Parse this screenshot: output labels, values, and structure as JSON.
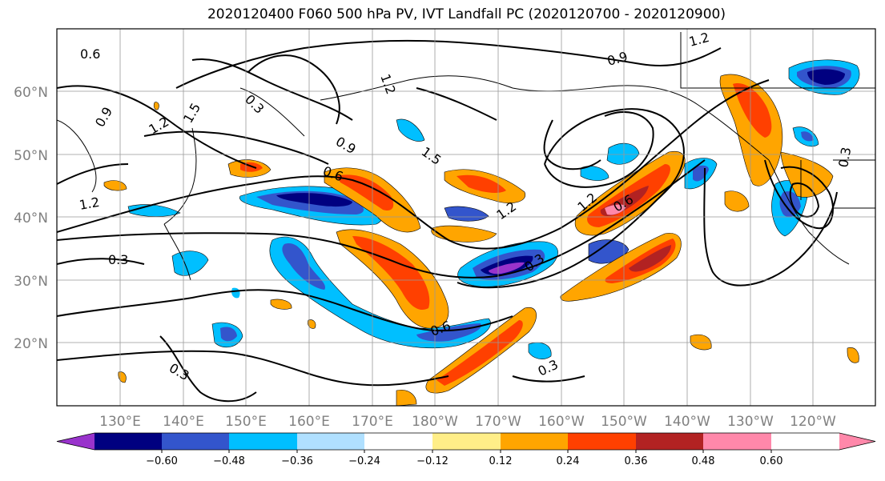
{
  "title": "2020120400 F060 500 hPa PV, IVT Landfall PC (2020120700 - 2020120900)",
  "map": {
    "lat_labels": [
      "60°N",
      "50°N",
      "40°N",
      "30°N",
      "20°N"
    ],
    "lon_labels": [
      "130°E",
      "140°E",
      "150°E",
      "160°E",
      "170°E",
      "180°W",
      "170°W",
      "160°W",
      "150°W",
      "140°W",
      "130°W",
      "120°W"
    ],
    "contour_labels": [
      "0.6",
      "0.9",
      "1.2",
      "1.5",
      "0.3",
      "1.2",
      "0.9",
      "0.6",
      "1.2",
      "1.5",
      "0.6",
      "0.3",
      "0.3",
      "0.3",
      "0.9",
      "0.3",
      "1.2",
      "0.6",
      "1.2",
      "1.2",
      "0.3"
    ]
  },
  "colorbar": {
    "colors": [
      "#9933cc",
      "#000080",
      "#3355cc",
      "#00bfff",
      "#b0e0ff",
      "#ffffff",
      "#ffee88",
      "#ffa500",
      "#ff4000",
      "#b22222",
      "#ff88aa"
    ],
    "ticks": [
      "−0.60",
      "−0.48",
      "−0.36",
      "−0.24",
      "−0.12",
      "0.12",
      "0.24",
      "0.36",
      "0.48",
      "0.60"
    ]
  }
}
